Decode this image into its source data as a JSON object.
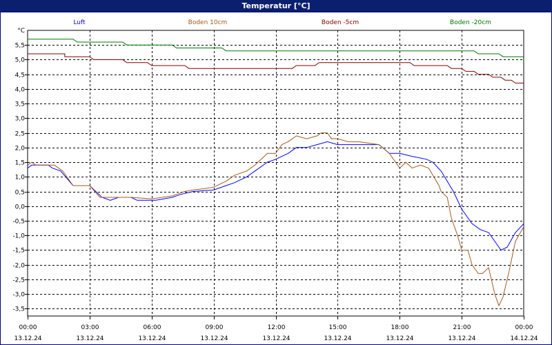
{
  "window": {
    "title": "Temperatur [°C]"
  },
  "chart_data": {
    "type": "line",
    "title": "Temperatur [°C]",
    "ylabel": "°C",
    "ylim": [
      -3.75,
      6.0
    ],
    "y_ticks": [
      5.5,
      5.0,
      4.5,
      4.0,
      3.5,
      3.0,
      2.5,
      2.0,
      1.5,
      1.0,
      0.5,
      0.0,
      -0.5,
      -1.0,
      -1.5,
      -2.0,
      -2.5,
      -3.0,
      -3.5
    ],
    "y_tick_labels": [
      "5,5",
      "5,0",
      "4,5",
      "4,0",
      "3,5",
      "3,0",
      "2,5",
      "2,0",
      "1,5",
      "1,0",
      "0,5",
      "0,0",
      "-0,5",
      "-1,0",
      "-1,5",
      "-2,0",
      "-2,5",
      "-3,0",
      "-3,5"
    ],
    "xlim": [
      0,
      24
    ],
    "x_ticks": [
      {
        "time": "00:00",
        "date": "13.12.24"
      },
      {
        "time": "03:00",
        "date": "13.12.24"
      },
      {
        "time": "06:00",
        "date": "13.12.24"
      },
      {
        "time": "09:00",
        "date": "13.12.24"
      },
      {
        "time": "12:00",
        "date": "13.12.24"
      },
      {
        "time": "15:00",
        "date": "13.12.24"
      },
      {
        "time": "18:00",
        "date": "13.12.24"
      },
      {
        "time": "21:00",
        "date": "13.12.24"
      },
      {
        "time": "00:00",
        "date": "14.12.24"
      }
    ],
    "grid": true,
    "legend_position": "top",
    "series": [
      {
        "name": "Luft",
        "color": "#0000ff",
        "points": [
          [
            0,
            1.3
          ],
          [
            0.2,
            1.4
          ],
          [
            1,
            1.4
          ],
          [
            1.2,
            1.3
          ],
          [
            1.6,
            1.2
          ],
          [
            2.2,
            0.7
          ],
          [
            3,
            0.7
          ],
          [
            3.6,
            0.3
          ],
          [
            4,
            0.2
          ],
          [
            4.4,
            0.3
          ],
          [
            5,
            0.3
          ],
          [
            5.3,
            0.2
          ],
          [
            6.2,
            0.2
          ],
          [
            7,
            0.3
          ],
          [
            7.4,
            0.4
          ],
          [
            8,
            0.5
          ],
          [
            9,
            0.55
          ],
          [
            9.6,
            0.7
          ],
          [
            10,
            0.8
          ],
          [
            10.6,
            1.0
          ],
          [
            11,
            1.2
          ],
          [
            11.6,
            1.5
          ],
          [
            12,
            1.6
          ],
          [
            12.6,
            1.8
          ],
          [
            13,
            2.0
          ],
          [
            13.5,
            2.0
          ],
          [
            14,
            2.1
          ],
          [
            14.5,
            2.2
          ],
          [
            15,
            2.1
          ],
          [
            16,
            2.1
          ],
          [
            17,
            2.1
          ],
          [
            17.5,
            1.8
          ],
          [
            18,
            1.8
          ],
          [
            18.6,
            1.7
          ],
          [
            19.3,
            1.6
          ],
          [
            19.6,
            1.5
          ],
          [
            20,
            1.2
          ],
          [
            20.6,
            0.5
          ],
          [
            21,
            -0.1
          ],
          [
            21.5,
            -0.6
          ],
          [
            21.9,
            -0.8
          ],
          [
            22.3,
            -0.9
          ],
          [
            22.7,
            -1.3
          ],
          [
            22.9,
            -1.5
          ],
          [
            23.2,
            -1.4
          ],
          [
            23.6,
            -0.9
          ],
          [
            24,
            -0.6
          ]
        ]
      },
      {
        "name": "Boden 10cm",
        "color": "#a05a1e",
        "points": [
          [
            0,
            1.4
          ],
          [
            0.2,
            1.5
          ],
          [
            0.4,
            1.4
          ],
          [
            1,
            1.4
          ],
          [
            1.3,
            1.4
          ],
          [
            1.7,
            1.2
          ],
          [
            2.2,
            0.7
          ],
          [
            3,
            0.7
          ],
          [
            3.5,
            0.3
          ],
          [
            4,
            0.3
          ],
          [
            4.4,
            0.3
          ],
          [
            5,
            0.3
          ],
          [
            6,
            0.25
          ],
          [
            7,
            0.35
          ],
          [
            7.6,
            0.5
          ],
          [
            8,
            0.55
          ],
          [
            8.6,
            0.6
          ],
          [
            9,
            0.65
          ],
          [
            9.6,
            0.85
          ],
          [
            10,
            1.05
          ],
          [
            10.6,
            1.2
          ],
          [
            11,
            1.4
          ],
          [
            11.6,
            1.8
          ],
          [
            12,
            1.8
          ],
          [
            12.3,
            2.1
          ],
          [
            12.6,
            2.2
          ],
          [
            13,
            2.4
          ],
          [
            13.5,
            2.3
          ],
          [
            14,
            2.4
          ],
          [
            14.2,
            2.5
          ],
          [
            14.5,
            2.5
          ],
          [
            14.7,
            2.3
          ],
          [
            15,
            2.3
          ],
          [
            15.5,
            2.2
          ],
          [
            16,
            2.2
          ],
          [
            17,
            2.1
          ],
          [
            17.5,
            1.8
          ],
          [
            18,
            1.3
          ],
          [
            18.3,
            1.5
          ],
          [
            18.6,
            1.3
          ],
          [
            19,
            1.4
          ],
          [
            19.4,
            1.3
          ],
          [
            19.9,
            0.7
          ],
          [
            20,
            0.5
          ],
          [
            20.3,
            0.3
          ],
          [
            20.5,
            -0.4
          ],
          [
            20.8,
            -1.0
          ],
          [
            21,
            -1.5
          ],
          [
            21.3,
            -1.5
          ],
          [
            21.5,
            -2.0
          ],
          [
            21.8,
            -2.3
          ],
          [
            22,
            -2.3
          ],
          [
            22.3,
            -2.1
          ],
          [
            22.6,
            -3.0
          ],
          [
            22.8,
            -3.4
          ],
          [
            23,
            -3.1
          ],
          [
            23.3,
            -2.2
          ],
          [
            23.6,
            -1.2
          ],
          [
            24,
            -0.7
          ]
        ]
      },
      {
        "name": "Boden -5cm",
        "color": "#800000",
        "points": [
          [
            0,
            5.2
          ],
          [
            1.8,
            5.2
          ],
          [
            1.8,
            5.1
          ],
          [
            3,
            5.1
          ],
          [
            3.2,
            5.0
          ],
          [
            4.6,
            5.0
          ],
          [
            4.8,
            4.9
          ],
          [
            5.8,
            4.9
          ],
          [
            6,
            4.8
          ],
          [
            7.6,
            4.8
          ],
          [
            7.8,
            4.7
          ],
          [
            12.8,
            4.7
          ],
          [
            13,
            4.8
          ],
          [
            13.9,
            4.8
          ],
          [
            14.1,
            4.9
          ],
          [
            18.5,
            4.9
          ],
          [
            18.7,
            4.8
          ],
          [
            20.3,
            4.8
          ],
          [
            20.5,
            4.7
          ],
          [
            21,
            4.7
          ],
          [
            21.2,
            4.6
          ],
          [
            21.6,
            4.6
          ],
          [
            21.8,
            4.5
          ],
          [
            22.3,
            4.5
          ],
          [
            22.5,
            4.4
          ],
          [
            22.9,
            4.4
          ],
          [
            23.1,
            4.3
          ],
          [
            23.4,
            4.3
          ],
          [
            23.6,
            4.2
          ],
          [
            24,
            4.2
          ]
        ]
      },
      {
        "name": "Boden -20cm",
        "color": "#007800",
        "points": [
          [
            0,
            5.7
          ],
          [
            2.2,
            5.7
          ],
          [
            2.4,
            5.6
          ],
          [
            4.6,
            5.6
          ],
          [
            4.8,
            5.5
          ],
          [
            7,
            5.5
          ],
          [
            7.2,
            5.4
          ],
          [
            9.4,
            5.4
          ],
          [
            9.6,
            5.3
          ],
          [
            21.6,
            5.3
          ],
          [
            21.8,
            5.2
          ],
          [
            22.8,
            5.2
          ],
          [
            23,
            5.1
          ],
          [
            24,
            5.1
          ]
        ]
      }
    ]
  }
}
